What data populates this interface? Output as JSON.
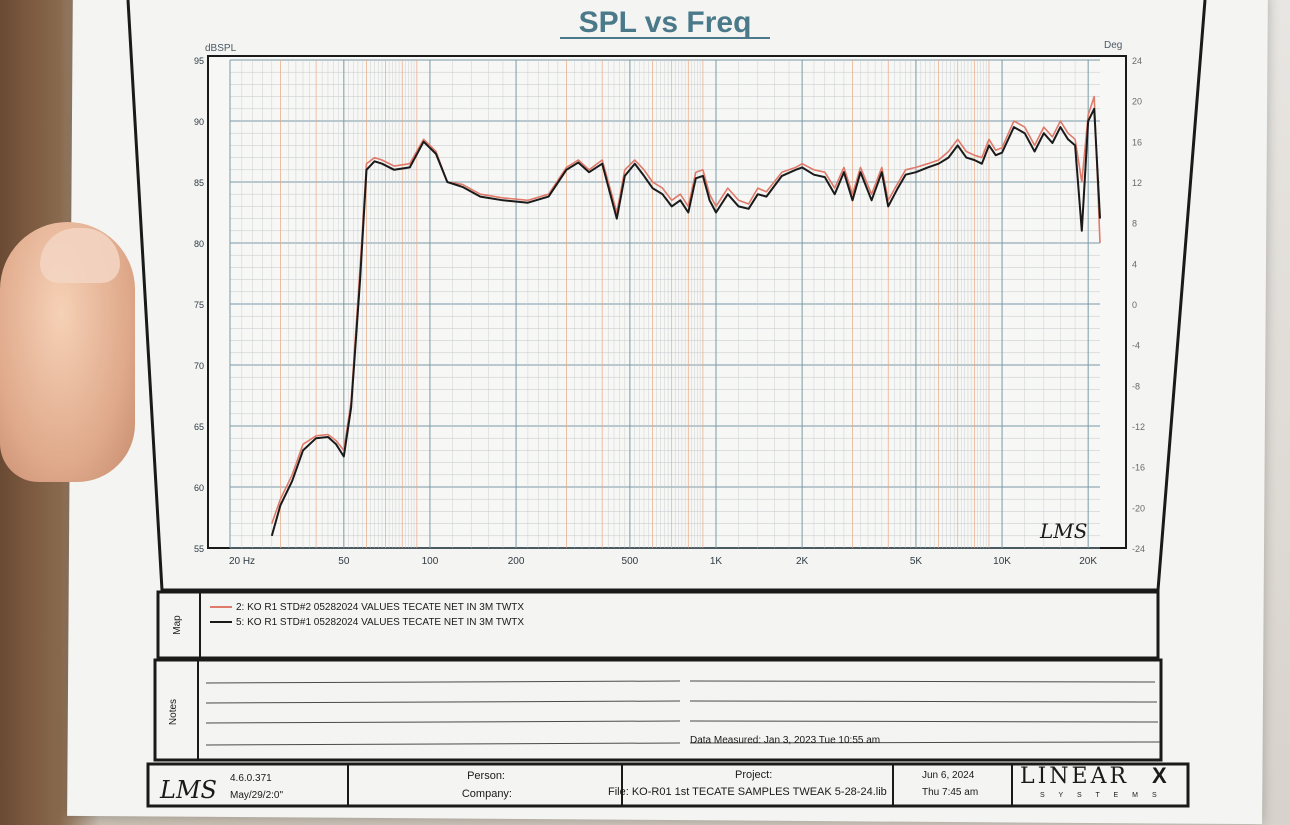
{
  "chart_data": {
    "type": "line",
    "title": "SPL vs Freq",
    "ylabel": "dBSPL",
    "y2label": "Deg",
    "xlabel": "",
    "xscale": "log",
    "xlim": [
      20,
      22000
    ],
    "ylim": [
      55,
      95
    ],
    "y2lim": [
      -24,
      24
    ],
    "grid": true,
    "x_ticks": [
      "20 Hz",
      "50",
      "100",
      "200",
      "500",
      "1K",
      "2K",
      "5K",
      "10K",
      "20K"
    ],
    "y_ticks": [
      "95",
      "90",
      "85",
      "80",
      "75",
      "70",
      "65",
      "60",
      "55"
    ],
    "y2_ticks": [
      "24",
      "20",
      "16",
      "12",
      "8",
      "4",
      "0",
      "-4",
      "-8",
      "-12",
      "-16",
      "-20",
      "-24"
    ],
    "series": [
      {
        "name": "2: KO R1 STD#2 05282024 VALUES TECATE NET IN 3M TWTX",
        "color": "#e07a6a",
        "x": [
          28,
          30,
          33,
          36,
          40,
          44,
          47,
          50,
          53,
          57,
          60,
          64,
          68,
          75,
          85,
          95,
          105,
          115,
          130,
          150,
          180,
          220,
          260,
          300,
          330,
          360,
          400,
          450,
          480,
          520,
          560,
          600,
          650,
          700,
          750,
          800,
          850,
          900,
          950,
          1000,
          1100,
          1200,
          1300,
          1400,
          1500,
          1700,
          1900,
          2000,
          2200,
          2400,
          2600,
          2800,
          3000,
          3200,
          3500,
          3800,
          4000,
          4300,
          4600,
          5000,
          5500,
          6000,
          6500,
          7000,
          7500,
          8000,
          8500,
          9000,
          9500,
          10000,
          11000,
          12000,
          13000,
          14000,
          15000,
          16000,
          17000,
          18000,
          19000,
          20000,
          21000,
          22000
        ],
        "y": [
          57,
          59,
          61,
          63.5,
          64.2,
          64.3,
          63.8,
          63,
          67,
          78,
          86.5,
          87,
          86.8,
          86.3,
          86.5,
          88.5,
          87.5,
          85,
          84.8,
          84,
          83.7,
          83.5,
          84,
          86.2,
          86.8,
          86,
          86.8,
          82.5,
          86,
          86.8,
          86,
          85,
          84.5,
          83.5,
          84,
          83,
          85.8,
          86,
          84,
          83,
          84.5,
          83.5,
          83.2,
          84.5,
          84.2,
          85.8,
          86.2,
          86.5,
          86,
          85.8,
          84.5,
          86.2,
          84,
          86.2,
          84,
          86.2,
          83.5,
          84.8,
          86,
          86.2,
          86.5,
          86.8,
          87.5,
          88.5,
          87.5,
          87.2,
          87,
          88.5,
          87.6,
          87.8,
          90,
          89.5,
          88,
          89.5,
          88.7,
          90,
          89,
          88.5,
          85,
          90.5,
          92,
          80
        ]
      },
      {
        "name": "5: KO R1 STD#1 05282024 VALUES TECATE NET IN 3M TWTX",
        "color": "#1a1a1a",
        "x": [
          28,
          30,
          33,
          36,
          40,
          44,
          47,
          50,
          53,
          57,
          60,
          64,
          68,
          75,
          85,
          95,
          105,
          115,
          130,
          150,
          180,
          220,
          260,
          300,
          330,
          360,
          400,
          450,
          480,
          520,
          560,
          600,
          650,
          700,
          750,
          800,
          850,
          900,
          950,
          1000,
          1100,
          1200,
          1300,
          1400,
          1500,
          1700,
          1900,
          2000,
          2200,
          2400,
          2600,
          2800,
          3000,
          3200,
          3500,
          3800,
          4000,
          4300,
          4600,
          5000,
          5500,
          6000,
          6500,
          7000,
          7500,
          8000,
          8500,
          9000,
          9500,
          10000,
          11000,
          12000,
          13000,
          14000,
          15000,
          16000,
          17000,
          18000,
          19000,
          20000,
          21000,
          22000
        ],
        "y": [
          56,
          58.5,
          60.5,
          63,
          64,
          64.1,
          63.5,
          62.5,
          66.5,
          77,
          86,
          86.7,
          86.5,
          86,
          86.2,
          88.3,
          87.3,
          85,
          84.6,
          83.8,
          83.5,
          83.3,
          83.8,
          86,
          86.6,
          85.8,
          86.5,
          82,
          85.5,
          86.5,
          85.5,
          84.5,
          84,
          83,
          83.5,
          82.5,
          85.3,
          85.5,
          83.5,
          82.5,
          84,
          83,
          82.8,
          84,
          83.8,
          85.5,
          86,
          86.2,
          85.6,
          85.4,
          84,
          85.8,
          83.5,
          85.8,
          83.5,
          85.8,
          83,
          84.4,
          85.6,
          85.8,
          86.2,
          86.5,
          87,
          88,
          87,
          86.8,
          86.5,
          88,
          87.2,
          87.4,
          89.5,
          89,
          87.5,
          89,
          88.2,
          89.5,
          88.5,
          88,
          81,
          90,
          91,
          82
        ]
      }
    ]
  },
  "chart_logo": "LMS",
  "legend_section_label": "Map",
  "notes": {
    "section_label": "Notes",
    "data_measured": "Data Measured: Jan 3, 2023  Tue 10:55 am"
  },
  "footer": {
    "logo": "LMS",
    "version": "4.6.0.371",
    "version_date": "May/29/2:0\"",
    "person_label": "Person:",
    "company_label": "Company:",
    "project_label": "Project:",
    "file_text": "File: KO-R01 1st TECATE SAMPLES TWEAK 5-28-24.lib",
    "date": "Jun 6, 2024",
    "time": "Thu 7:45 am",
    "brand": "LINEAR",
    "brand_x": "X",
    "brand_sub": "S Y S T E M S"
  },
  "colors": {
    "paper": "#f4f4f2",
    "grid": "#7a9aa6",
    "grid_minor": "#c2c7cc",
    "grid_orange": "#e8a884",
    "title": "#4a7a8a",
    "ink": "#1a1a1a"
  }
}
